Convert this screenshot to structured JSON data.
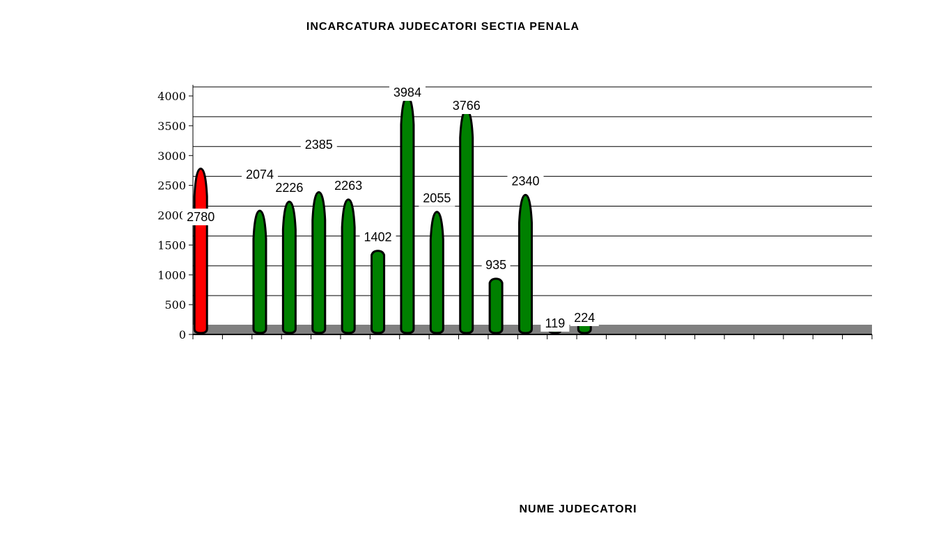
{
  "chart_data": {
    "type": "bar",
    "title": "INCARCATURA JUDECATORI SECTIA PENALA",
    "xlabel": "NUME JUDECATORI",
    "ylabel": "",
    "ylim": [
      0,
      4000
    ],
    "yticks": [
      0,
      500,
      1000,
      1500,
      2000,
      2500,
      3000,
      3500,
      4000
    ],
    "grid": true,
    "legend": "none",
    "categories": [
      "",
      "",
      "",
      "",
      "",
      "",
      "",
      "",
      "",
      "",
      "",
      "",
      "",
      "",
      "",
      "",
      "",
      "",
      "",
      "",
      "",
      "",
      ""
    ],
    "values": [
      2780,
      null,
      2074,
      2226,
      2385,
      2263,
      1402,
      3984,
      2055,
      3766,
      935,
      2340,
      119,
      224,
      null,
      null,
      null,
      null,
      null,
      null,
      null,
      null,
      null
    ],
    "value_labels": [
      "2780",
      "",
      "2074",
      "2226",
      "2385",
      "2263",
      "1402",
      "3984",
      "2055",
      "3766",
      "935",
      "2340",
      "119",
      "224",
      "",
      "",
      "",
      "",
      "",
      "",
      "",
      "",
      ""
    ],
    "colors": {
      "highlight": "#ff0000",
      "bar": "#008000",
      "floor": "#808080",
      "outline": "#000000"
    },
    "highlight_index": 0
  }
}
